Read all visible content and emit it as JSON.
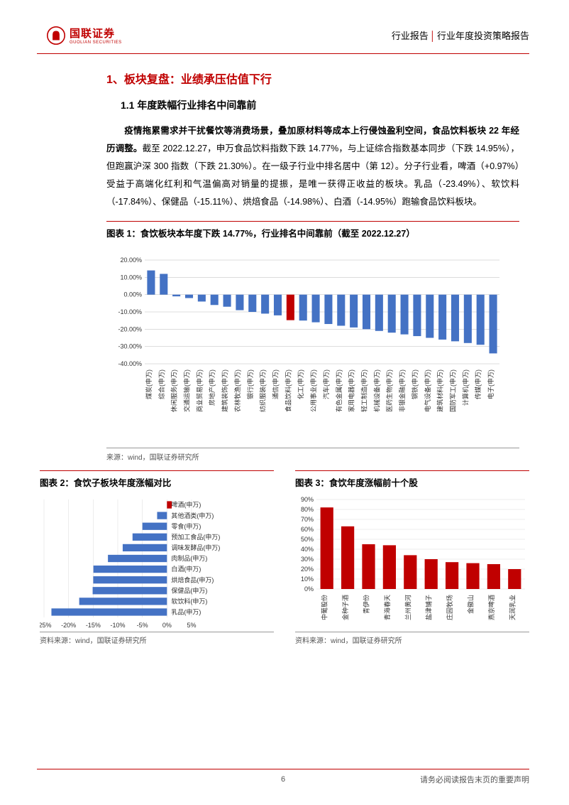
{
  "header": {
    "logo_cn": "国联证券",
    "logo_en": "GUOLIAN SECURITIES",
    "right_a": "行业报告",
    "right_b": "行业年度投资策略报告"
  },
  "h1": "1、板块复盘：业绩承压估值下行",
  "h2": "1.1 年度跌幅行业排名中间靠前",
  "para": {
    "lead_bold": "疫情拖累需求并干扰餐饮等消费场景，叠加原材料等成本上行侵蚀盈利空间，食品饮料板块 22 年经历调整。",
    "rest": "截至 2022.12.27，申万食品饮料指数下跌 14.77%，与上证综合指数基本同步（下跌 14.95%），但跑赢沪深 300 指数（下跌 21.30%）。在一级子行业中排名居中（第 12）。分子行业看，啤酒（+0.97%）受益于高端化红利和气温偏高对销量的提振，是唯一获得正收益的板块。乳品（-23.49%）、软饮料（-17.84%）、保健品（-15.11%）、烘焙食品（-14.98%）、白酒（-14.95%）跑输食品饮料板块。"
  },
  "chart1": {
    "title": "图表 1：食饮板块本年度下跌 14.77%，行业排名中间靠前（截至 2022.12.27）",
    "source": "来源：wind，国联证券研究所",
    "ylim": [
      -40,
      20
    ],
    "ytick_step": 10,
    "ytick_labels": [
      "-40.00%",
      "-30.00%",
      "-20.00%",
      "-10.00%",
      "0.00%",
      "10.00%",
      "20.00%"
    ],
    "bar_color": "#4472c4",
    "highlight_color": "#c00000",
    "highlight_index": 11,
    "grid_color": "#d9d9d9",
    "categories": [
      "煤炭(申万)",
      "综合(申万)",
      "休闲服务(申万)",
      "交通运输(申万)",
      "商业贸易(申万)",
      "房地产(申万)",
      "建筑装饰(申万)",
      "农林牧渔(申万)",
      "银行(申万)",
      "纺织服装(申万)",
      "通信(申万)",
      "食品饮料(申万)",
      "化工(申万)",
      "公用事业(申万)",
      "汽车(申万)",
      "有色金属(申万)",
      "家用电器(申万)",
      "轻工制造(申万)",
      "机械设备(申万)",
      "医药生物(申万)",
      "非银金融(申万)",
      "钢铁(申万)",
      "电气设备(申万)",
      "建筑材料(申万)",
      "国防军工(申万)",
      "计算机(申万)",
      "传媒(申万)",
      "电子(申万)"
    ],
    "values": [
      14,
      12,
      -1,
      -2,
      -4,
      -6,
      -7,
      -9,
      -10,
      -11,
      -12,
      -14.77,
      -15,
      -16,
      -17,
      -18,
      -19,
      -20,
      -21,
      -22,
      -23,
      -24,
      -25,
      -26,
      -27,
      -28,
      -29,
      -34
    ]
  },
  "chart2": {
    "title": "图表 2：食饮子板块年度涨幅对比",
    "source": "资料来源：wind，国联证券研究所",
    "xlim": [
      -25,
      5
    ],
    "xtick_step": 5,
    "xtick_labels": [
      "-25%",
      "-20%",
      "-15%",
      "-10%",
      "-5%",
      "0%",
      "5%"
    ],
    "bar_color": "#4472c4",
    "pos_color": "#c00000",
    "grid_color": "#d9d9d9",
    "categories": [
      "啤酒(申万)",
      "其他酒类(申万)",
      "零食(申万)",
      "预加工食品(申万)",
      "调味发酵品(申万)",
      "肉制品(申万)",
      "白酒(申万)",
      "烘焙食品(申万)",
      "保健品(申万)",
      "软饮料(申万)",
      "乳品(申万)"
    ],
    "values": [
      0.97,
      -2,
      -5,
      -7,
      -9,
      -12,
      -14.95,
      -14.98,
      -15.11,
      -17.84,
      -23.49
    ]
  },
  "chart3": {
    "title": "图表 3：食饮年度涨幅前十个股",
    "source": "资料来源：wind，国联证券研究所",
    "ylim": [
      0,
      90
    ],
    "ytick_step": 10,
    "ytick_labels": [
      "0%",
      "10%",
      "20%",
      "30%",
      "40%",
      "50%",
      "60%",
      "70%",
      "80%",
      "90%"
    ],
    "bar_color": "#c00000",
    "grid_color": "#d9d9d9",
    "categories": [
      "中葡股份",
      "金种子酒",
      "青伊份",
      "青海春天",
      "兰州黄河",
      "盐津铺子",
      "庄园牧场",
      "金徽山",
      "燕京啤酒",
      "天润乳业"
    ],
    "values": [
      82,
      63,
      45,
      44,
      34,
      30,
      27,
      26,
      25,
      20
    ]
  },
  "footer": {
    "page": "6",
    "disclaimer": "请务必阅读报告末页的重要声明"
  }
}
